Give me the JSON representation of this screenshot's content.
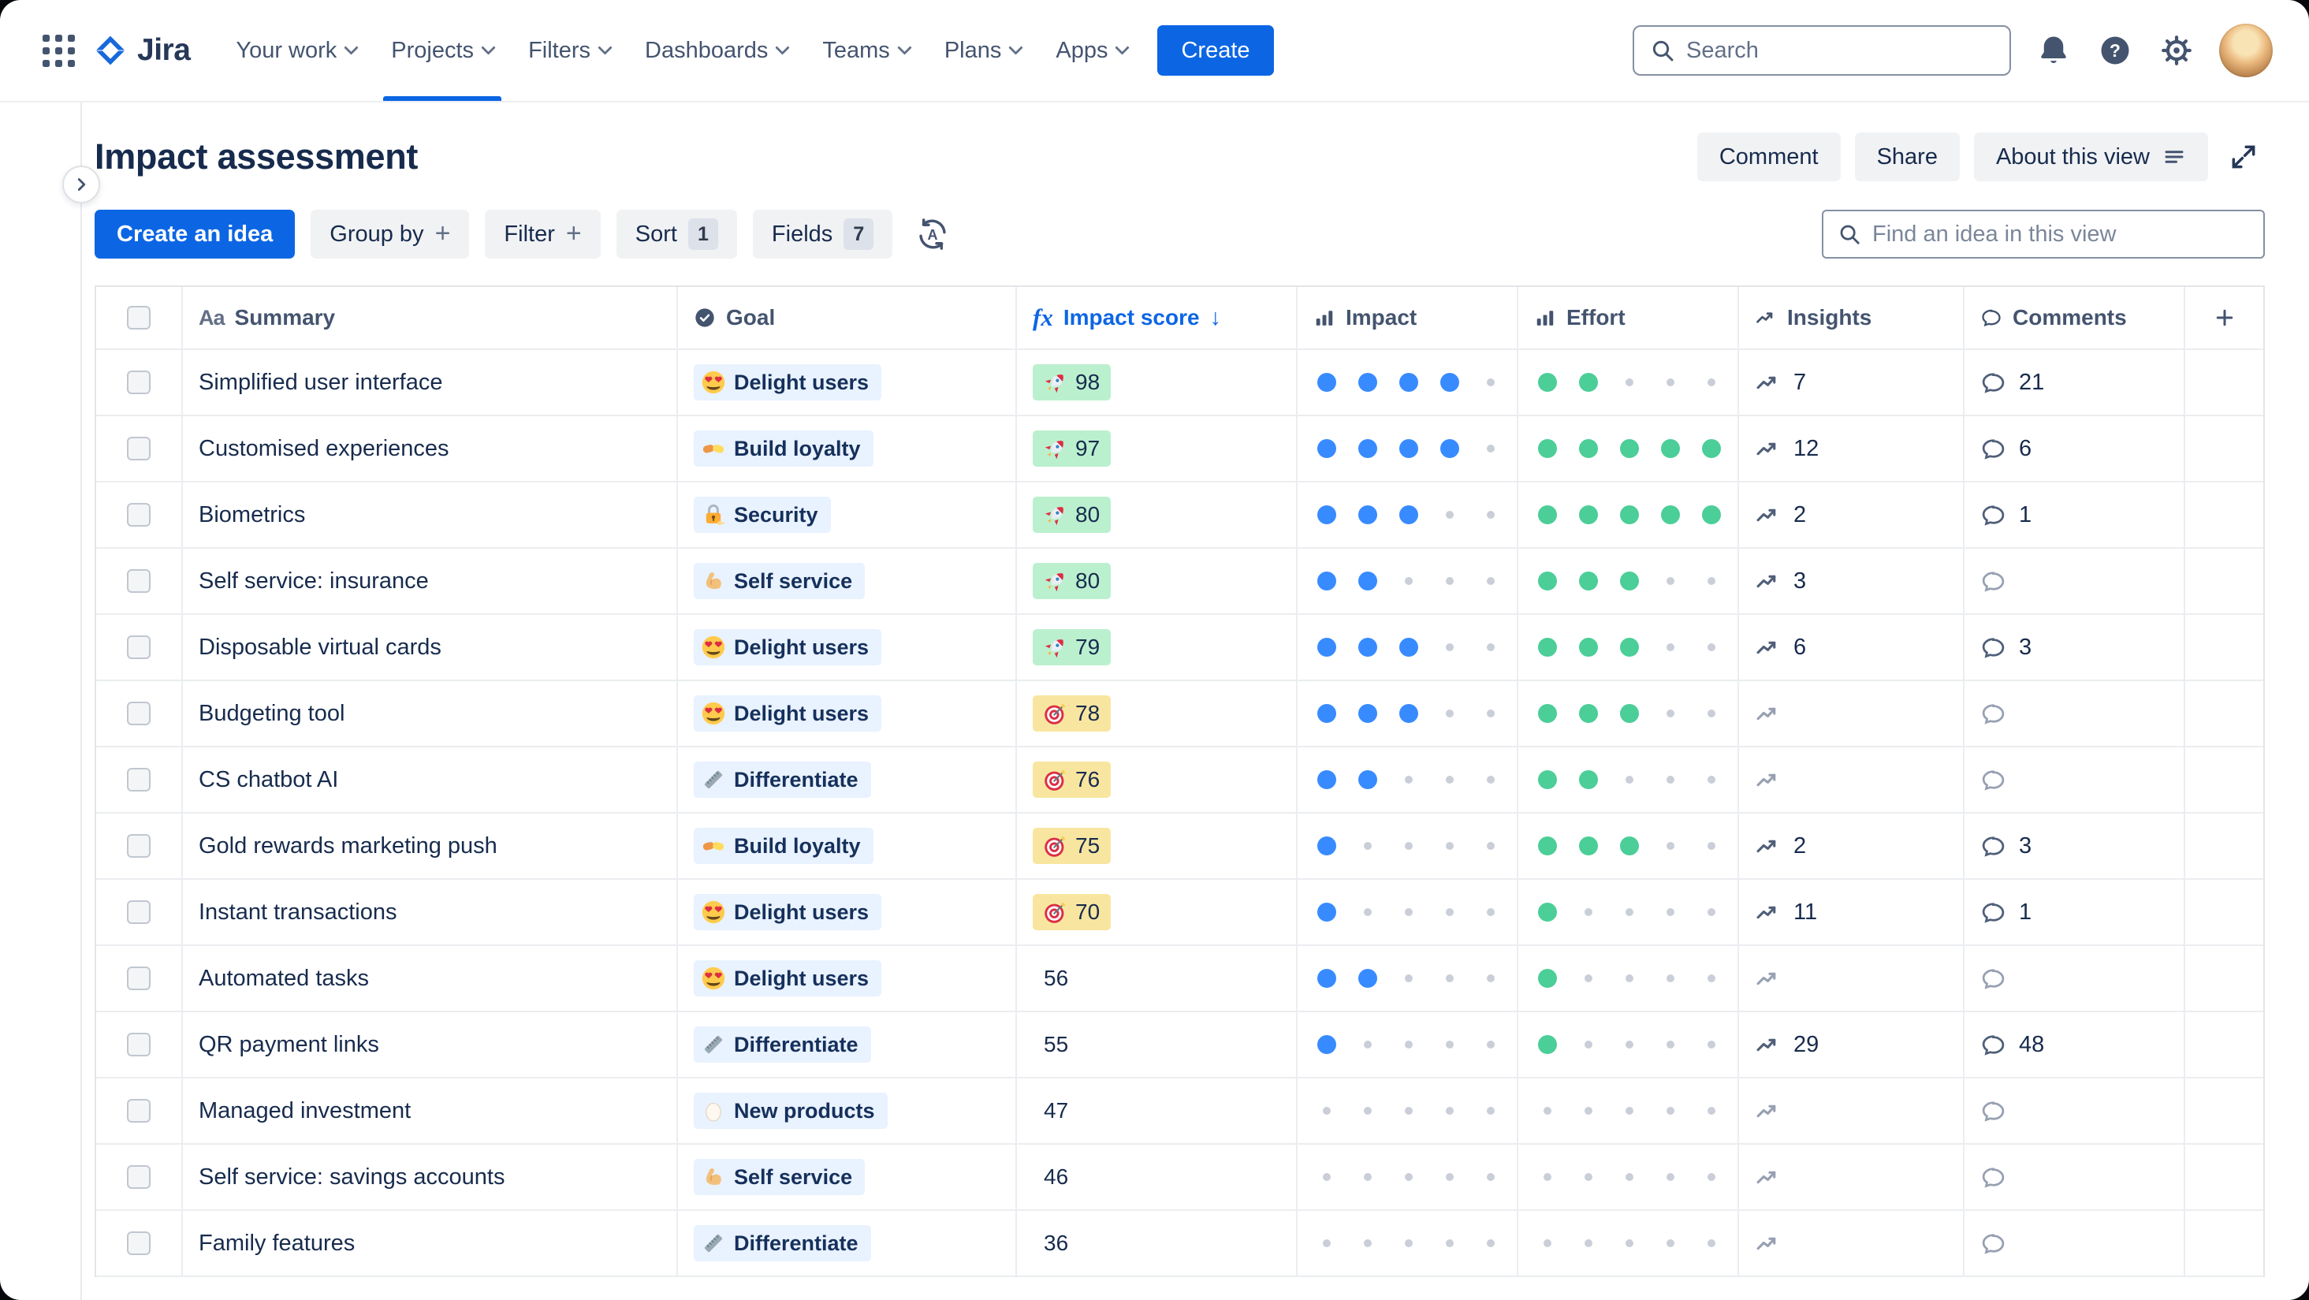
{
  "nav": {
    "brand": "Jira",
    "items": [
      "Your work",
      "Projects",
      "Filters",
      "Dashboards",
      "Teams",
      "Plans",
      "Apps"
    ],
    "active_item": "Projects",
    "create_label": "Create",
    "search_placeholder": "Search"
  },
  "header": {
    "title": "Impact assessment",
    "comment_label": "Comment",
    "share_label": "Share",
    "about_label": "About this view"
  },
  "toolbar": {
    "create_idea_label": "Create an idea",
    "group_by_label": "Group by",
    "filter_label": "Filter",
    "sort_label": "Sort",
    "sort_badge": "1",
    "fields_label": "Fields",
    "fields_badge": "7",
    "find_placeholder": "Find an idea in this view"
  },
  "icons": {
    "plus": "+",
    "sort_desc_arrow": "↓",
    "summary_glyph": "Aa",
    "formula_glyph": "fx"
  },
  "table": {
    "sort": {
      "column": "Impact score",
      "direction": "desc"
    },
    "columns": [
      {
        "label": "Summary",
        "icon": "text-style-icon"
      },
      {
        "label": "Goal",
        "icon": "goal-check-icon"
      },
      {
        "label": "Impact score",
        "icon": "formula-icon"
      },
      {
        "label": "Impact",
        "icon": "bar-chart-icon"
      },
      {
        "label": "Effort",
        "icon": "bar-chart-icon"
      },
      {
        "label": "Insights",
        "icon": "trend-icon"
      },
      {
        "label": "Comments",
        "icon": "comment-icon"
      }
    ],
    "rating_scale_max": 5,
    "rows": [
      {
        "summary": "Simplified user interface",
        "goal": {
          "label": "Delight users",
          "emoji": "heart-eyes"
        },
        "impact_score": {
          "value": 98,
          "tier": "high",
          "emoji": "rocket"
        },
        "impact": 4,
        "effort": 2,
        "insights": 7,
        "comments": 21
      },
      {
        "summary": "Customised experiences",
        "goal": {
          "label": "Build loyalty",
          "emoji": "handshake"
        },
        "impact_score": {
          "value": 97,
          "tier": "high",
          "emoji": "rocket"
        },
        "impact": 4,
        "effort": 5,
        "insights": 12,
        "comments": 6
      },
      {
        "summary": "Biometrics",
        "goal": {
          "label": "Security",
          "emoji": "lock"
        },
        "impact_score": {
          "value": 80,
          "tier": "high",
          "emoji": "rocket"
        },
        "impact": 3,
        "effort": 5,
        "insights": 2,
        "comments": 1
      },
      {
        "summary": "Self service: insurance",
        "goal": {
          "label": "Self service",
          "emoji": "biceps"
        },
        "impact_score": {
          "value": 80,
          "tier": "high",
          "emoji": "rocket"
        },
        "impact": 2,
        "effort": 3,
        "insights": 3,
        "comments": null
      },
      {
        "summary": "Disposable virtual cards",
        "goal": {
          "label": "Delight users",
          "emoji": "heart-eyes"
        },
        "impact_score": {
          "value": 79,
          "tier": "high",
          "emoji": "rocket"
        },
        "impact": 3,
        "effort": 3,
        "insights": 6,
        "comments": 3
      },
      {
        "summary": "Budgeting tool",
        "goal": {
          "label": "Delight users",
          "emoji": "heart-eyes"
        },
        "impact_score": {
          "value": 78,
          "tier": "medium",
          "emoji": "dart"
        },
        "impact": 3,
        "effort": 3,
        "insights": null,
        "comments": null
      },
      {
        "summary": "CS chatbot AI",
        "goal": {
          "label": "Differentiate",
          "emoji": "ruler"
        },
        "impact_score": {
          "value": 76,
          "tier": "medium",
          "emoji": "dart"
        },
        "impact": 2,
        "effort": 2,
        "insights": null,
        "comments": null
      },
      {
        "summary": "Gold rewards marketing push",
        "goal": {
          "label": "Build loyalty",
          "emoji": "handshake"
        },
        "impact_score": {
          "value": 75,
          "tier": "medium",
          "emoji": "dart"
        },
        "impact": 1,
        "effort": 3,
        "insights": 2,
        "comments": 3
      },
      {
        "summary": "Instant transactions",
        "goal": {
          "label": "Delight users",
          "emoji": "heart-eyes"
        },
        "impact_score": {
          "value": 70,
          "tier": "medium",
          "emoji": "dart"
        },
        "impact": 1,
        "effort": 1,
        "insights": 11,
        "comments": 1
      },
      {
        "summary": "Automated tasks",
        "goal": {
          "label": "Delight users",
          "emoji": "heart-eyes"
        },
        "impact_score": {
          "value": 56,
          "tier": "none",
          "emoji": null
        },
        "impact": 2,
        "effort": 1,
        "insights": null,
        "comments": null
      },
      {
        "summary": "QR payment links",
        "goal": {
          "label": "Differentiate",
          "emoji": "ruler"
        },
        "impact_score": {
          "value": 55,
          "tier": "none",
          "emoji": null
        },
        "impact": 1,
        "effort": 1,
        "insights": 29,
        "comments": 48
      },
      {
        "summary": "Managed investment",
        "goal": {
          "label": "New products",
          "emoji": "egg"
        },
        "impact_score": {
          "value": 47,
          "tier": "none",
          "emoji": null
        },
        "impact": 0,
        "effort": 0,
        "insights": null,
        "comments": null
      },
      {
        "summary": "Self service: savings accounts",
        "goal": {
          "label": "Self service",
          "emoji": "biceps"
        },
        "impact_score": {
          "value": 46,
          "tier": "none",
          "emoji": null
        },
        "impact": 0,
        "effort": 0,
        "insights": null,
        "comments": null
      },
      {
        "summary": "Family features",
        "goal": {
          "label": "Differentiate",
          "emoji": "ruler"
        },
        "impact_score": {
          "value": 36,
          "tier": "none",
          "emoji": null
        },
        "impact": 0,
        "effort": 0,
        "insights": null,
        "comments": null
      }
    ]
  },
  "colors": {
    "accent_blue": "#0C66E4",
    "score_high_bg": "#BBF0CE",
    "score_medium_bg": "#F8E6A0",
    "goal_pill_bg": "#E9F2FF",
    "impact_dot": "#388BFF",
    "effort_dot": "#4BCE97"
  }
}
